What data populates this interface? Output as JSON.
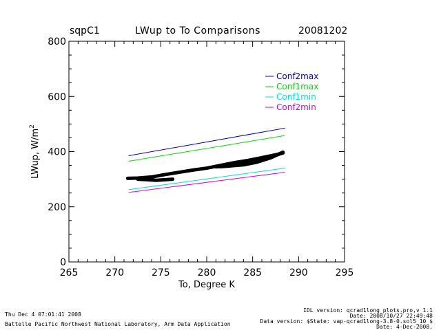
{
  "header": {
    "site": "sqpC1",
    "title": "LWup to To Comparisons",
    "date": "20081202"
  },
  "footer": {
    "left_line1": "Thu Dec  4 07:01:41 2008",
    "left_line2": "Battelle Pacific Northwest National Laboratory, Arm Data Application",
    "right_line1": "IDL version: qcrad1long_plots.pro,v 1.1",
    "right_line2": "Date: 2008/10/27 22:49:48",
    "right_line3": "Data version: $State: vap-qcrad1long-3.8-0.sol5_10 $",
    "right_line4": "Date: 4-Dec-2008,"
  },
  "chart_data": {
    "type": "line",
    "xlabel": "To, Degree K",
    "ylabel": "LWup, W/m",
    "ylabel_sup": "2",
    "xlim": [
      265,
      295
    ],
    "ylim": [
      0,
      800
    ],
    "xticks": [
      265,
      270,
      275,
      280,
      285,
      290,
      295
    ],
    "yticks": [
      0,
      200,
      400,
      600,
      800
    ],
    "legend_position": "top-right",
    "series": [
      {
        "name": "Conf2max",
        "color": "#0000cc",
        "x": [
          271.5,
          288.5
        ],
        "y": [
          385,
          485
        ]
      },
      {
        "name": "Conf1max",
        "color": "#00dd00",
        "x": [
          271.5,
          288.5
        ],
        "y": [
          365,
          458
        ]
      },
      {
        "name": "Conf1min",
        "color": "#00dddd",
        "x": [
          271.5,
          288.5
        ],
        "y": [
          262,
          340
        ]
      },
      {
        "name": "Conf2min",
        "color": "#dd00dd",
        "x": [
          271.5,
          288.5
        ],
        "y": [
          252,
          325
        ]
      }
    ],
    "observed": {
      "color": "#000000",
      "segments": [
        {
          "x": [
            271.4,
            272.5,
            274.0,
            275.5,
            277.0,
            278.5,
            280.0,
            281.5,
            283.0,
            284.5,
            286.0,
            287.0,
            287.8,
            288.3,
            288.0,
            287.0,
            286.0,
            284.5,
            283.5,
            282.5,
            281.5
          ],
          "y": [
            303,
            304,
            308,
            317,
            325,
            333,
            340,
            350,
            360,
            368,
            378,
            385,
            390,
            395,
            392,
            385,
            378,
            365,
            355,
            348,
            345
          ]
        },
        {
          "x": [
            281.0,
            282.5,
            284.0,
            285.5,
            287.0,
            288.3
          ],
          "y": [
            345,
            348,
            352,
            362,
            378,
            398
          ]
        },
        {
          "x": [
            272.5,
            273.5,
            274.5,
            275.5,
            276.3
          ],
          "y": [
            300,
            298,
            296,
            298,
            300
          ]
        }
      ]
    }
  }
}
